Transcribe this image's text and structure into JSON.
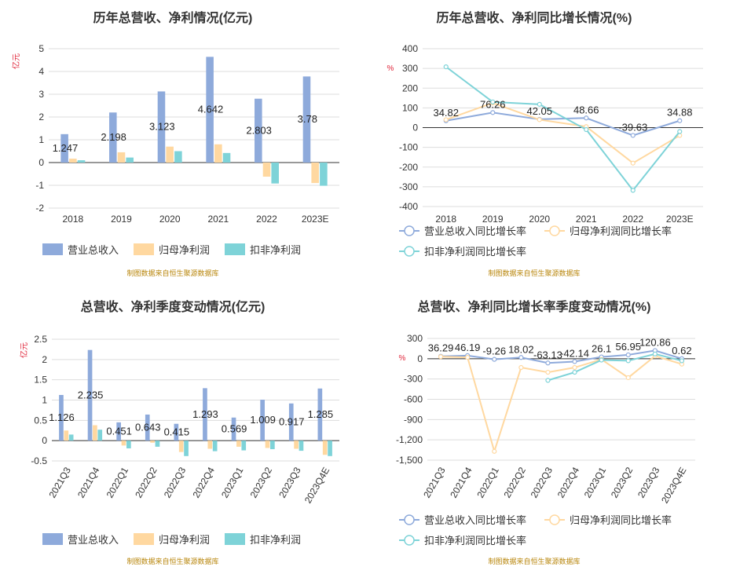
{
  "colors": {
    "revenue": "#8eaadb",
    "parent_profit": "#ffd8a0",
    "deducted_profit": "#7ed3d8",
    "unit_label": "#e0263a",
    "source": "#b8860b",
    "title": "#333333",
    "axis_text": "#333333",
    "grid": "#dddddd"
  },
  "chart_data": [
    {
      "type": "bar",
      "title": "历年总营收、净利情况(亿元)",
      "ylabel": "亿元",
      "categories": [
        "2018",
        "2019",
        "2020",
        "2021",
        "2022",
        "2023E"
      ],
      "ylim": [
        -2,
        5
      ],
      "yticks": [
        "-2",
        "-1",
        "0",
        "1",
        "2",
        "3",
        "4",
        "5"
      ],
      "series": [
        {
          "name": "营业总收入",
          "values": [
            1.247,
            2.198,
            3.123,
            4.642,
            2.803,
            3.78
          ],
          "labels": [
            "1.247",
            "2.198",
            "3.123",
            "4.642",
            "2.803",
            "3.78"
          ]
        },
        {
          "name": "归母净利润",
          "values": [
            0.17,
            0.45,
            0.7,
            0.8,
            -0.62,
            -0.9
          ]
        },
        {
          "name": "扣非净利润",
          "values": [
            0.1,
            0.22,
            0.5,
            0.42,
            -0.92,
            -1.02
          ]
        }
      ],
      "legend": "bottom",
      "source": "制图数据来自恒生聚源数据库"
    },
    {
      "type": "line",
      "title": "历年总营收、净利同比增长情况(%)",
      "ylabel": "%",
      "categories": [
        "2018",
        "2019",
        "2020",
        "2021",
        "2022",
        "2023E"
      ],
      "ylim": [
        -400,
        400
      ],
      "yticks": [
        "-400",
        "-300",
        "-200",
        "-100",
        "0",
        "100",
        "200",
        "300",
        "400"
      ],
      "series": [
        {
          "name": "营业总收入同比增长率",
          "values": [
            34.82,
            76.26,
            42.05,
            48.66,
            -39.63,
            34.88
          ],
          "labels": [
            "34.82",
            "76.26",
            "42.05",
            "48.66",
            "-39.63",
            "34.88"
          ]
        },
        {
          "name": "归母净利润同比增长率",
          "values": [
            40,
            125,
            40,
            5,
            -180,
            -40
          ]
        },
        {
          "name": "扣非净利润同比增长率",
          "values": [
            308,
            130,
            118,
            -10,
            -318,
            -20
          ]
        }
      ],
      "legend": "bottom",
      "source": "制图数据来自恒生聚源数据库"
    },
    {
      "type": "bar",
      "title": "总营收、净利季度变动情况(亿元)",
      "ylabel": "亿元",
      "categories": [
        "2021Q3",
        "2021Q4",
        "2022Q1",
        "2022Q2",
        "2022Q3",
        "2022Q4",
        "2023Q1",
        "2023Q2",
        "2023Q3",
        "2023Q4E"
      ],
      "ylim": [
        -0.5,
        2.5
      ],
      "yticks": [
        "-0.5",
        "0",
        "0.5",
        "1",
        "1.5",
        "2",
        "2.5"
      ],
      "series": [
        {
          "name": "营业总收入",
          "values": [
            1.126,
            2.235,
            0.451,
            0.643,
            0.415,
            1.293,
            0.569,
            1.009,
            0.917,
            1.285
          ],
          "labels": [
            "1.126",
            "2.235",
            "0.451",
            "0.643",
            "0.415",
            "1.293",
            "0.569",
            "1.009",
            "0.917",
            "1.285"
          ]
        },
        {
          "name": "归母净利润",
          "values": [
            0.25,
            0.38,
            -0.12,
            -0.05,
            -0.28,
            -0.2,
            -0.15,
            -0.18,
            -0.2,
            -0.35
          ]
        },
        {
          "name": "扣非净利润",
          "values": [
            0.15,
            0.27,
            -0.19,
            -0.15,
            -0.38,
            -0.26,
            -0.24,
            -0.21,
            -0.25,
            -0.38
          ]
        }
      ],
      "legend": "bottom",
      "source": "制图数据来自恒生聚源数据库"
    },
    {
      "type": "line",
      "title": "总营收、净利同比增长率季度变动情况(%)",
      "ylabel": "%",
      "categories": [
        "2021Q3",
        "2021Q4",
        "2022Q1",
        "2022Q2",
        "2022Q3",
        "2022Q4",
        "2023Q1",
        "2023Q2",
        "2023Q3",
        "2023Q4E"
      ],
      "ylim": [
        -1500,
        300
      ],
      "yticks": [
        "-1,500",
        "-1,200",
        "-900",
        "-600",
        "-300",
        "0",
        "300"
      ],
      "series": [
        {
          "name": "营业总收入同比增长率",
          "values": [
            36.29,
            46.19,
            -9.26,
            18.02,
            -63.13,
            -42.14,
            26.1,
            56.95,
            120.86,
            0.62
          ],
          "labels": [
            "36.29",
            "46.19",
            "-9.26",
            "18.02",
            "-63.13",
            "-42.14",
            "26.1",
            "56.95",
            "120.86",
            "0.62"
          ]
        },
        {
          "name": "归母净利润同比增长率",
          "values": [
            30,
            20,
            -1370,
            -130,
            -200,
            -130,
            -10,
            -280,
            40,
            -80
          ]
        },
        {
          "name": "扣非净利润同比增长率",
          "values": [
            null,
            null,
            null,
            null,
            -320,
            -200,
            -20,
            -30,
            70,
            -30
          ]
        }
      ],
      "legend": "bottom",
      "source": "制图数据来自恒生聚源数据库"
    }
  ]
}
